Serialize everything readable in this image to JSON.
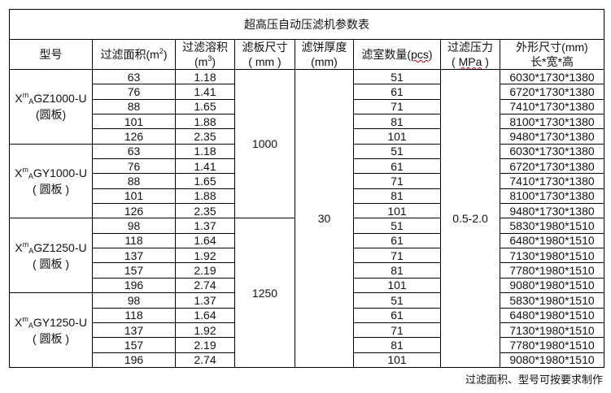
{
  "title": "超高压自动压滤机参数表",
  "headers": {
    "model": "型号",
    "area_a": "过滤面积(m",
    "area_sup": "2",
    "area_b": ")",
    "vol_a": "过滤溶积",
    "vol_b": "(m",
    "vol_sup": "3",
    "vol_c": ")",
    "plate_a": "滤板尺寸",
    "plate_b": "( mm )",
    "cake_a": "滤饼厚度",
    "cake_b": "(mm)",
    "chambers_a": "滤室数量(",
    "chambers_w": "pcs",
    "chambers_b": ")",
    "pressure_a": "过滤压力",
    "pressure_b": "( ",
    "pressure_w": "MPa",
    "pressure_c": " )",
    "dims_a": "外形尺寸(mm)",
    "dims_b": "长*宽*高"
  },
  "plate_sizes": [
    "1000",
    "1250"
  ],
  "cake_thickness": "30",
  "pressure": "0.5-2.0",
  "groups": [
    {
      "x": "X",
      "sup": "m",
      "sub": "A",
      "rest": "GZ1000-U",
      "note": "(圆板)",
      "rows": [
        [
          "63",
          "1.18",
          "51",
          "6030*1730*1380"
        ],
        [
          "76",
          "1.41",
          "61",
          "6720*1730*1380"
        ],
        [
          "88",
          "1.65",
          "71",
          "7410*1730*1380"
        ],
        [
          "101",
          "1.88",
          "81",
          "8100*1730*1380"
        ],
        [
          "126",
          "2.35",
          "101",
          "9480*1730*1380"
        ]
      ]
    },
    {
      "x": "X",
      "sup": "m",
      "sub": "A",
      "rest": "GY1000-U",
      "note": "( 圆板 )",
      "rows": [
        [
          "63",
          "1.18",
          "51",
          "6030*1730*1380"
        ],
        [
          "76",
          "1.41",
          "61",
          "6720*1730*1380"
        ],
        [
          "88",
          "1.65",
          "71",
          "7410*1730*1380"
        ],
        [
          "101",
          "1.88",
          "81",
          "8100*1730*1380"
        ],
        [
          "126",
          "2.35",
          "101",
          "9480*1730*1380"
        ]
      ]
    },
    {
      "x": "X",
      "sup": "m",
      "sub": "A",
      "rest": "GZ1250-U",
      "note": "( 圆板 )",
      "rows": [
        [
          "98",
          "1.37",
          "51",
          "5830*1980*1510"
        ],
        [
          "118",
          "1.64",
          "61",
          "6480*1980*1510"
        ],
        [
          "137",
          "1.92",
          "71",
          "7130*1980*1510"
        ],
        [
          "157",
          "2.19",
          "81",
          "7780*1980*1510"
        ],
        [
          "196",
          "2.74",
          "101",
          "9080*1980*1510"
        ]
      ]
    },
    {
      "x": "X",
      "sup": "m",
      "sub": "A",
      "rest": "GY1250-U",
      "note": "( 圆板 )",
      "rows": [
        [
          "98",
          "1.37",
          "51",
          "5830*1980*1510"
        ],
        [
          "118",
          "1.64",
          "61",
          "6480*1980*1510"
        ],
        [
          "137",
          "1.92",
          "71",
          "7130*1980*1510"
        ],
        [
          "157",
          "2.19",
          "81",
          "7780*1980*1510"
        ],
        [
          "196",
          "2.74",
          "101",
          "9080*1980*1510"
        ]
      ]
    }
  ],
  "footer": "过滤面积、型号可按要求制作"
}
